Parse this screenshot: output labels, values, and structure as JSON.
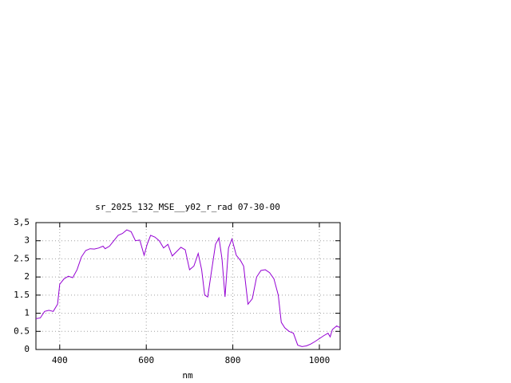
{
  "chart_data": {
    "type": "line",
    "title": "sr_2025_132_MSE__y02_r_rad 07-30-00",
    "x_label": "nm",
    "x": [
      345,
      355,
      365,
      375,
      385,
      395,
      400,
      410,
      420,
      430,
      440,
      450,
      460,
      470,
      480,
      490,
      500,
      505,
      515,
      525,
      535,
      545,
      555,
      565,
      575,
      585,
      595,
      602,
      610,
      620,
      630,
      640,
      650,
      660,
      670,
      680,
      690,
      700,
      710,
      720,
      728,
      735,
      742,
      750,
      760,
      768,
      775,
      782,
      790,
      798,
      808,
      818,
      825,
      835,
      845,
      855,
      865,
      875,
      885,
      895,
      905,
      912,
      920,
      930,
      940,
      950,
      960,
      970,
      980,
      990,
      1000,
      1010,
      1020,
      1025,
      1030,
      1040,
      1048
    ],
    "series": [
      {
        "name": "sr_2025_132_MSE__y02_r_rad",
        "color": "#9400d3",
        "values": [
          0.85,
          0.87,
          1.05,
          1.08,
          1.05,
          1.25,
          1.8,
          1.95,
          2.02,
          1.98,
          2.2,
          2.55,
          2.73,
          2.78,
          2.77,
          2.8,
          2.85,
          2.78,
          2.85,
          3.0,
          3.15,
          3.2,
          3.3,
          3.25,
          3.0,
          3.02,
          2.6,
          2.9,
          3.15,
          3.1,
          3.0,
          2.8,
          2.9,
          2.58,
          2.7,
          2.82,
          2.75,
          2.2,
          2.3,
          2.65,
          2.2,
          1.5,
          1.45,
          2.1,
          2.9,
          3.08,
          2.5,
          1.45,
          2.8,
          3.05,
          2.6,
          2.45,
          2.3,
          1.25,
          1.4,
          2.0,
          2.18,
          2.2,
          2.12,
          1.95,
          1.5,
          0.75,
          0.6,
          0.5,
          0.45,
          0.12,
          0.08,
          0.1,
          0.15,
          0.22,
          0.3,
          0.38,
          0.45,
          0.35,
          0.55,
          0.65,
          0.6
        ]
      }
    ],
    "xlim": [
      345,
      1048
    ],
    "xticks": [
      400,
      600,
      800,
      1000
    ],
    "ylim": [
      0,
      3.5
    ],
    "yticks": [
      0,
      {
        "value": 0.5,
        "label": "0.5"
      },
      1,
      {
        "value": 1.5,
        "label": "1.5"
      },
      2,
      {
        "value": 2.5,
        "label": "2.5"
      },
      3,
      {
        "value": 3.5,
        "label": "3,5"
      }
    ],
    "grid": true
  }
}
